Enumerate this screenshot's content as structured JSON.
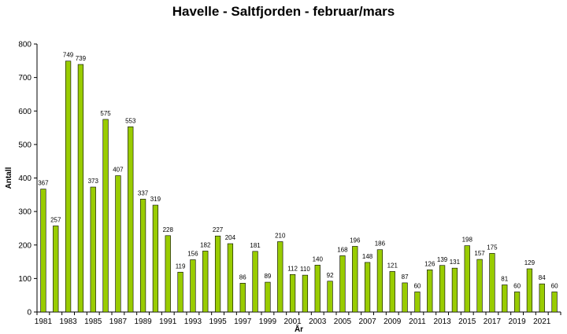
{
  "chart_data": {
    "type": "bar",
    "title": "Havelle - Saltfjorden - februar/mars",
    "xlabel": "År",
    "ylabel": "Antall",
    "ylim": [
      0,
      800
    ],
    "yticks": [
      0,
      100,
      200,
      300,
      400,
      500,
      600,
      700,
      800
    ],
    "grid": false,
    "legend": "none",
    "bar_color": "#99CC00",
    "bar_edge_color": "#000000",
    "categories": [
      1981,
      1982,
      1983,
      1984,
      1985,
      1986,
      1987,
      1988,
      1989,
      1990,
      1991,
      1992,
      1993,
      1994,
      1995,
      1996,
      1997,
      1998,
      1999,
      2000,
      2001,
      2002,
      2003,
      2004,
      2005,
      2006,
      2007,
      2008,
      2009,
      2010,
      2011,
      2012,
      2013,
      2014,
      2015,
      2016,
      2017,
      2018,
      2019,
      2020,
      2021,
      2022
    ],
    "x_tick_labels": [
      "1981",
      "1983",
      "1985",
      "1987",
      "1989",
      "1991",
      "1993",
      "1995",
      "1997",
      "1999",
      "2001",
      "2003",
      "2005",
      "2007",
      "2009",
      "2011",
      "2013",
      "2015",
      "2017",
      "2019",
      "2021"
    ],
    "values": [
      367,
      257,
      749,
      739,
      373,
      575,
      407,
      553,
      337,
      319,
      228,
      119,
      156,
      182,
      227,
      204,
      86,
      181,
      89,
      210,
      112,
      110,
      140,
      92,
      168,
      196,
      148,
      186,
      121,
      87,
      60,
      126,
      139,
      131,
      198,
      157,
      175,
      81,
      60,
      129,
      84,
      60
    ]
  }
}
